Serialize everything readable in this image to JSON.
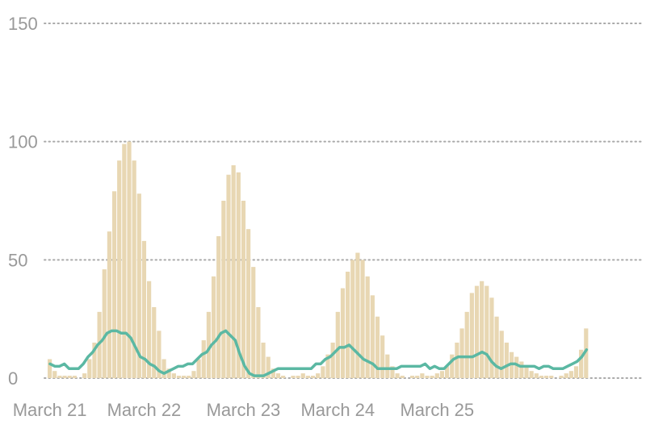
{
  "chart_data": {
    "type": "bar",
    "title": "",
    "xlabel": "",
    "ylabel": "",
    "ylim": [
      0,
      150
    ],
    "y_ticks": [
      "0",
      "50",
      "100",
      "150"
    ],
    "x_ticks": [
      {
        "label": "March 21",
        "index": 0
      },
      {
        "label": "March 22",
        "index": 19
      },
      {
        "label": "March 23",
        "index": 39
      },
      {
        "label": "March 24",
        "index": 58
      },
      {
        "label": "March 25",
        "index": 78
      }
    ],
    "grid": true,
    "colors": {
      "bars": "#e8d7b3",
      "line": "#5bb8a3",
      "grid": "#aaaaaa",
      "text": "#999999"
    },
    "series": [
      {
        "type": "bar",
        "values": [
          8,
          3,
          1,
          1,
          1,
          1,
          0,
          2,
          8,
          15,
          28,
          46,
          62,
          79,
          92,
          99,
          100,
          92,
          78,
          58,
          41,
          30,
          20,
          8,
          4,
          2,
          1,
          1,
          1,
          3,
          8,
          16,
          28,
          43,
          60,
          75,
          86,
          90,
          87,
          75,
          63,
          47,
          30,
          15,
          9,
          4,
          2,
          1,
          0,
          1,
          1,
          2,
          1,
          1,
          2,
          5,
          10,
          15,
          28,
          38,
          45,
          50,
          53,
          50,
          43,
          35,
          26,
          18,
          10,
          5,
          2,
          1,
          0,
          1,
          1,
          2,
          1,
          1,
          2,
          3,
          5,
          10,
          15,
          21,
          28,
          36,
          39,
          41,
          39,
          34,
          26,
          20,
          15,
          11,
          9,
          7,
          5,
          3,
          2,
          1,
          1,
          1,
          0,
          1,
          2,
          3,
          5,
          12,
          21
        ]
      },
      {
        "type": "line",
        "values": [
          6,
          5,
          5,
          6,
          4,
          4,
          4,
          6,
          9,
          11,
          14,
          16,
          19,
          20,
          20,
          19,
          19,
          17,
          13,
          9,
          8,
          6,
          5,
          3,
          2,
          3,
          4,
          5,
          5,
          6,
          6,
          8,
          10,
          11,
          14,
          16,
          19,
          20,
          18,
          16,
          10,
          5,
          2,
          1,
          1,
          1,
          2,
          3,
          4,
          4,
          4,
          4,
          4,
          4,
          4,
          4,
          6,
          6,
          8,
          9,
          11,
          13,
          13,
          14,
          12,
          10,
          8,
          7,
          6,
          4,
          4,
          4,
          4,
          4,
          5,
          5,
          5,
          5,
          5,
          6,
          4,
          5,
          4,
          4,
          6,
          8,
          9,
          9,
          9,
          9,
          10,
          11,
          10,
          7,
          5,
          4,
          5,
          6,
          6,
          5,
          5,
          5,
          5,
          4,
          5,
          5,
          4,
          4,
          4,
          5,
          6,
          7,
          9,
          12
        ]
      }
    ]
  }
}
